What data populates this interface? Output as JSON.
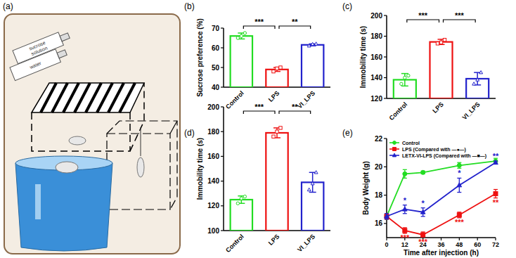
{
  "illustration": {
    "title": "(a)",
    "bottle_labels": [
      "sucrose solution",
      "water"
    ]
  },
  "chart_data": [
    {
      "type": "bar",
      "title": "(b)",
      "y_label": "Sucrose preference (%)",
      "categories": [
        "Control",
        "LPS",
        "VI_LPS"
      ],
      "values": [
        66,
        49,
        61.5
      ],
      "errors": [
        1.5,
        1,
        0.5
      ],
      "points": [
        [
          65,
          66,
          67.5
        ],
        [
          48,
          49.5,
          50
        ],
        [
          61,
          61.8,
          62
        ]
      ],
      "colors": [
        "#22dd22",
        "#ee1111",
        "#2222cc"
      ],
      "ylim": [
        40,
        70
      ],
      "yticks": [
        40,
        50,
        60,
        70
      ],
      "comparisons": [
        {
          "from": 0,
          "to": 1,
          "label": "***"
        },
        {
          "from": 1,
          "to": 2,
          "label": "**"
        }
      ]
    },
    {
      "type": "bar",
      "title": "(c)",
      "y_label": "Immobility time (s)",
      "categories": [
        "Control",
        "LPS",
        "VI_LPS"
      ],
      "values": [
        138,
        174.5,
        139
      ],
      "errors": [
        6,
        2.5,
        6
      ],
      "points": [
        [
          134,
          140,
          142
        ],
        [
          173,
          174,
          176.5
        ],
        [
          134,
          138,
          145
        ]
      ],
      "colors": [
        "#22dd22",
        "#ee1111",
        "#2222cc"
      ],
      "ylim": [
        120,
        200
      ],
      "yticks": [
        120,
        140,
        160,
        180,
        200
      ],
      "comparisons": [
        {
          "from": 0,
          "to": 1,
          "label": "***"
        },
        {
          "from": 1,
          "to": 2,
          "label": "***"
        }
      ]
    },
    {
      "type": "bar",
      "title": "(d)",
      "y_label": "Immobility time (s)",
      "categories": [
        "Control",
        "LPS",
        "VI_LPS"
      ],
      "values": [
        125,
        179,
        139
      ],
      "errors": [
        3,
        4,
        8
      ],
      "points": [
        [
          122,
          126,
          127.5
        ],
        [
          176,
          180,
          183
        ],
        [
          133,
          138,
          147
        ]
      ],
      "colors": [
        "#22dd22",
        "#ee1111",
        "#2222cc"
      ],
      "ylim": [
        100,
        200
      ],
      "yticks": [
        100,
        120,
        140,
        160,
        180,
        200
      ],
      "comparisons": [
        {
          "from": 0,
          "to": 1,
          "label": "***"
        },
        {
          "from": 1,
          "to": 2,
          "label": "**"
        }
      ]
    },
    {
      "type": "line",
      "title": "(e)",
      "x_label": "Time after injection (h)",
      "y_label": "Body Weight (g)",
      "x": [
        0,
        12,
        24,
        48,
        72
      ],
      "xlim": [
        0,
        72
      ],
      "xticks": [
        0,
        12,
        24,
        36,
        48,
        60,
        72
      ],
      "ylim": [
        15,
        22
      ],
      "yticks": [
        16,
        18,
        20,
        22
      ],
      "legend": "upper left",
      "series": [
        {
          "name": "Control",
          "color": "#22dd22",
          "marker": "circle",
          "values": [
            16.5,
            19.5,
            19.6,
            20.1,
            20.4
          ],
          "errors": [
            0.2,
            0.3,
            0.1,
            0.2,
            0.2
          ]
        },
        {
          "name": "LPS (Compared with —●—)",
          "color": "#ee1111",
          "marker": "square",
          "values": [
            16.5,
            15.5,
            15.2,
            16.6,
            18.1
          ],
          "errors": [
            0.2,
            0.2,
            0.2,
            0.2,
            0.3
          ],
          "significance": [
            null,
            "***",
            "***",
            "***",
            "**"
          ]
        },
        {
          "name": "LETX-VI-LPS (Compared with —■—)",
          "color": "#2222cc",
          "marker": "triangle",
          "values": [
            16.5,
            17.0,
            16.8,
            18.7,
            20.3
          ],
          "errors": [
            0.2,
            0.3,
            0.3,
            0.5,
            0.1
          ],
          "significance": [
            null,
            "*",
            "*",
            "*",
            "**"
          ]
        }
      ]
    }
  ]
}
